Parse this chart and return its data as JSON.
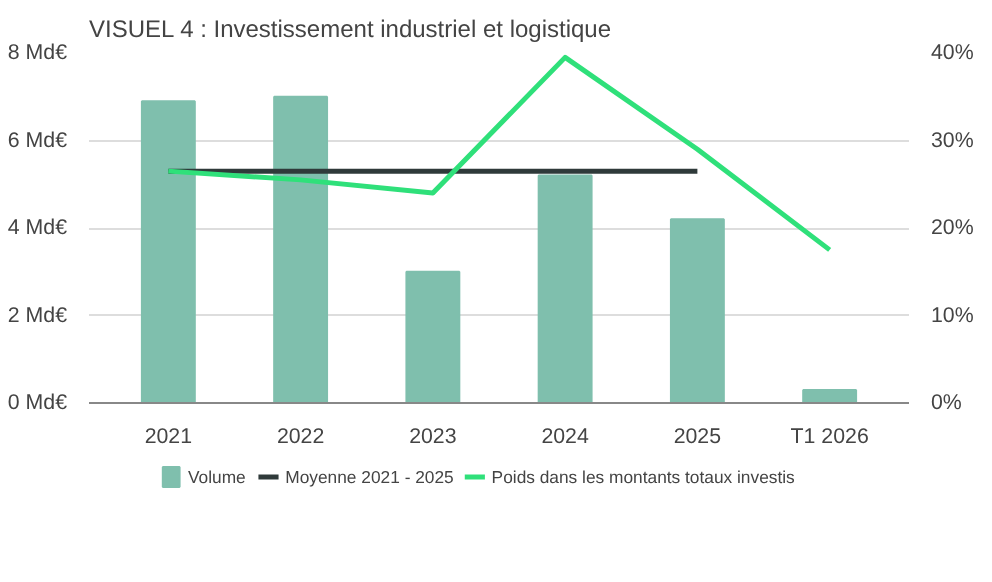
{
  "chart_data": {
    "type": "bar",
    "title": "VISUEL 4 : Investissement industriel et logistique",
    "categories": [
      "2021",
      "2022",
      "2023",
      "2024",
      "2025",
      "T1 2026"
    ],
    "series": [
      {
        "name": "Volume",
        "type": "bar",
        "color": "#7fbfad",
        "values": [
          6.9,
          7.0,
          3.0,
          5.2,
          4.2,
          0.3
        ]
      },
      {
        "name": "Moyenne 2021 - 2025",
        "type": "line",
        "color": "#2f3a3a",
        "values": [
          5.3,
          5.3,
          5.3,
          5.3,
          5.3,
          null
        ]
      },
      {
        "name": "Poids dans les montants totaux investis",
        "type": "line",
        "axis": "y2",
        "color": "#2fe07a",
        "values": [
          26.5,
          25.5,
          24,
          39.5,
          29,
          17.5
        ]
      }
    ],
    "ylim": [
      0,
      8
    ],
    "yticks": [
      {
        "value": 0,
        "label": "0 Md€"
      },
      {
        "value": 2,
        "label": "2 Md€"
      },
      {
        "value": 4,
        "label": "4 Md€"
      },
      {
        "value": 6,
        "label": "6 Md€"
      },
      {
        "value": 8,
        "label": "8 Md€"
      }
    ],
    "y2lim": [
      0,
      40
    ],
    "y2ticks": [
      {
        "value": 0,
        "label": "0%"
      },
      {
        "value": 10,
        "label": "10%"
      },
      {
        "value": 20,
        "label": "20%"
      },
      {
        "value": 30,
        "label": "30%"
      },
      {
        "value": 40,
        "label": "40%"
      }
    ],
    "grid": "y",
    "legend": "bottom"
  }
}
